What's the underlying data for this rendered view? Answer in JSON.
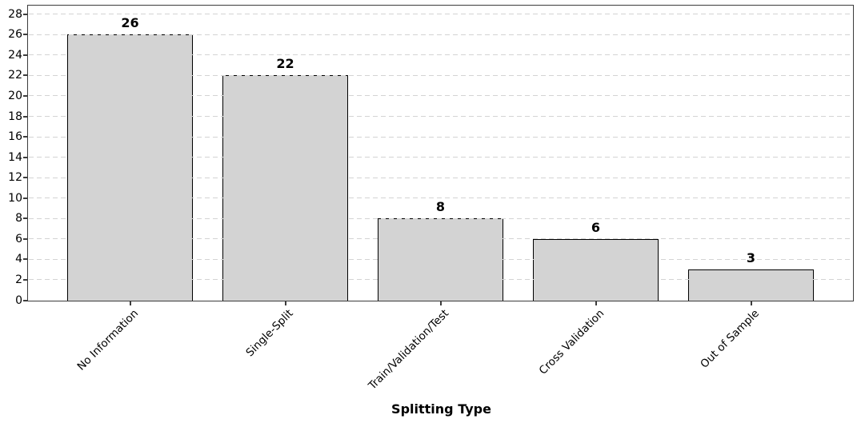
{
  "chart_data": {
    "type": "bar",
    "title": "",
    "xlabel": "Splitting Type",
    "ylabel": "",
    "categories": [
      "No Information",
      "Single-Split",
      "Train/Validation/Test",
      "Cross Validation",
      "Out of Sample"
    ],
    "values": [
      26,
      22,
      8,
      6,
      3
    ],
    "bar_value_labels": [
      "26",
      "22",
      "8",
      "6",
      "3"
    ],
    "yticks": [
      0,
      2,
      4,
      6,
      8,
      10,
      12,
      14,
      16,
      18,
      20,
      22,
      24,
      26,
      28
    ],
    "ylim": [
      0,
      28.8
    ],
    "grid": "horizontal dashed, drawn above bars",
    "legend": "none",
    "xtick_rotation_deg": 45,
    "colors": {
      "bar_fill": "#d3d3d3",
      "bar_edge": "#000000",
      "grid_line": "#d3d3d3",
      "axis_line": "#3c3c3c",
      "text": "#000000",
      "background": "#ffffff"
    }
  }
}
